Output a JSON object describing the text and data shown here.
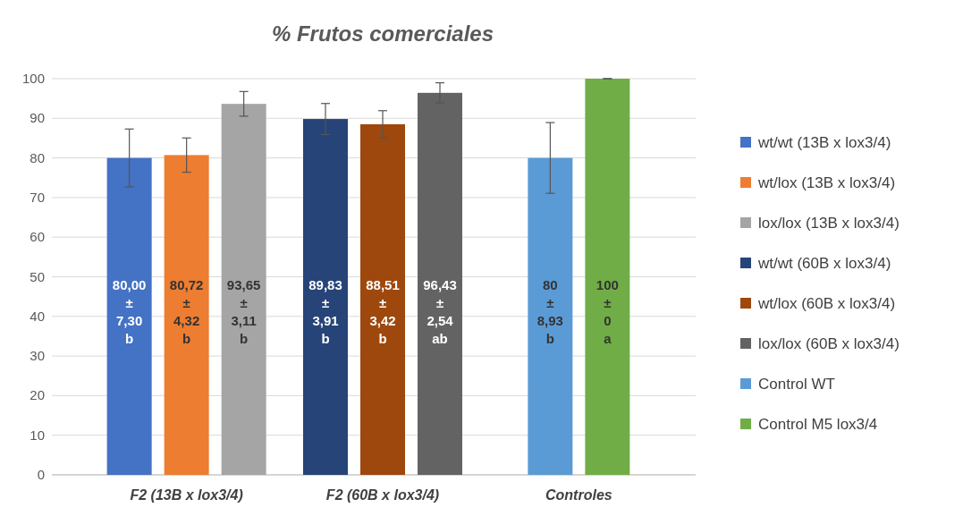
{
  "chart_data": {
    "type": "bar",
    "title": "% Frutos comerciales",
    "categories": [
      "F2 (13B x lox3/4)",
      "F2 (60B x lox3/4)",
      "Controles"
    ],
    "ylim": [
      0,
      100
    ],
    "yticks": [
      0,
      10,
      20,
      30,
      40,
      50,
      60,
      70,
      80,
      90,
      100
    ],
    "grid": "y",
    "legend": "right",
    "series": [
      {
        "name": "wt/wt (13B x lox3/4)",
        "color": "#4472c4",
        "values": [
          80.0,
          null,
          null
        ],
        "errors": [
          7.3,
          null,
          null
        ],
        "value_labels": [
          "80,00 ± 7,30 b",
          null,
          null
        ]
      },
      {
        "name": "wt/lox (13B x lox3/4)",
        "color": "#ed7d31",
        "values": [
          80.72,
          null,
          null
        ],
        "errors": [
          4.32,
          null,
          null
        ],
        "value_labels": [
          "80,72 ± 4,32 b",
          null,
          null
        ]
      },
      {
        "name": "lox/lox (13B x lox3/4)",
        "color": "#a5a5a5",
        "values": [
          93.65,
          null,
          null
        ],
        "errors": [
          3.11,
          null,
          null
        ],
        "value_labels": [
          "93,65 ± 3,11 b",
          null,
          null
        ]
      },
      {
        "name": "wt/wt (60B x lox3/4)",
        "color": "#264478",
        "values": [
          null,
          89.83,
          null
        ],
        "errors": [
          null,
          3.91,
          null
        ],
        "value_labels": [
          null,
          "89,83 ± 3,91 b",
          null
        ]
      },
      {
        "name": "wt/lox (60B x lox3/4)",
        "color": "#9e480e",
        "values": [
          null,
          88.51,
          null
        ],
        "errors": [
          null,
          3.42,
          null
        ],
        "value_labels": [
          null,
          "88,51 ± 3,42 b",
          null
        ]
      },
      {
        "name": "lox/lox (60B x lox3/4)",
        "color": "#636363",
        "values": [
          null,
          96.43,
          null
        ],
        "errors": [
          null,
          2.54,
          null
        ],
        "value_labels": [
          null,
          "96,43 ± 2,54 ab",
          null
        ]
      },
      {
        "name": "Control WT",
        "color": "#5b9bd5",
        "values": [
          null,
          null,
          80
        ],
        "errors": [
          null,
          null,
          8.93
        ],
        "value_labels": [
          null,
          null,
          "80 ± 8,93 b"
        ]
      },
      {
        "name": "Control M5 lox3/4",
        "color": "#70ad47",
        "values": [
          null,
          null,
          100
        ],
        "errors": [
          null,
          null,
          0
        ],
        "value_labels": [
          null,
          null,
          "100 ± 0 a"
        ]
      }
    ]
  }
}
